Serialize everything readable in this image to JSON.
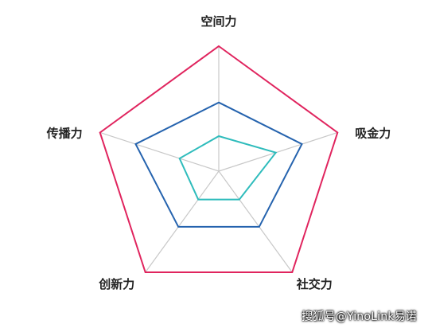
{
  "chart_data": {
    "type": "radar",
    "axes": [
      "空间力",
      "吸金力",
      "社交力",
      "创新力",
      "传播力"
    ],
    "range": [
      0,
      100
    ],
    "grid": "spokes",
    "series": [
      {
        "values": [
          100,
          100,
          100,
          100,
          100
        ],
        "color": "#e0245e"
      },
      {
        "values": [
          55,
          70,
          55,
          55,
          70
        ],
        "color": "#2563ae"
      },
      {
        "values": [
          28,
          48,
          28,
          28,
          33
        ],
        "color": "#2fbcbc"
      }
    ]
  },
  "watermark": "搜狐号@YinoLink易诺"
}
